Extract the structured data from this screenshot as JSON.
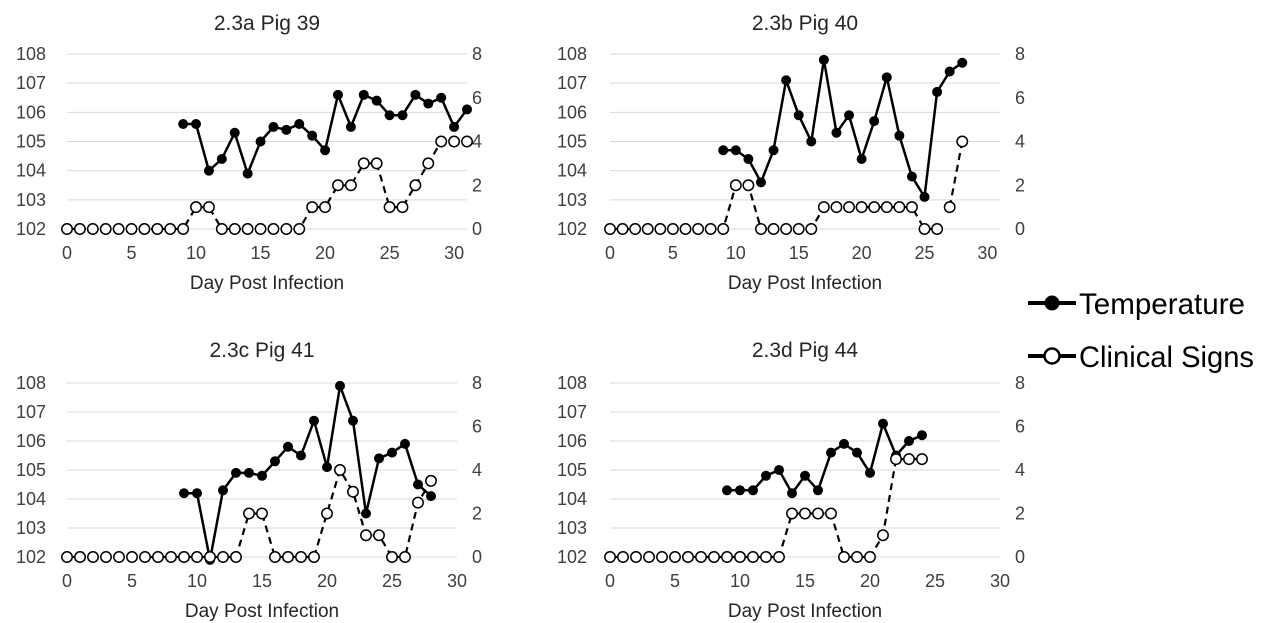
{
  "legend": [
    {
      "name": "Temperature",
      "marker": "filled",
      "line": "solid"
    },
    {
      "name": "Clinical Signs",
      "marker": "open",
      "line": "dashed"
    }
  ],
  "colors": {
    "series": "#000000",
    "grid": "#d9d9d9",
    "tick_text": "#404040"
  },
  "chart_data": [
    {
      "type": "line",
      "title": "2.3a Pig 39",
      "xlabel": "Day Post Infection",
      "x_ticks": [
        0,
        5,
        10,
        15,
        20,
        25,
        30
      ],
      "xlim": [
        0,
        31
      ],
      "ylim_left": [
        102,
        108
      ],
      "y_ticks_left": [
        102,
        103,
        104,
        105,
        106,
        107,
        108
      ],
      "ylim_right": [
        0,
        8
      ],
      "y_ticks_right": [
        0,
        2,
        4,
        6,
        8
      ],
      "grid": true,
      "series": [
        {
          "name": "Temperature",
          "axis": "left",
          "x": [
            9,
            10,
            11,
            12,
            13,
            14,
            15,
            16,
            17,
            18,
            19,
            20,
            21,
            22,
            23,
            24,
            25,
            26,
            27,
            28,
            29,
            30,
            31
          ],
          "y": [
            105.6,
            105.6,
            104.0,
            104.4,
            105.3,
            103.9,
            105.0,
            105.5,
            105.4,
            105.6,
            105.2,
            104.7,
            106.6,
            105.5,
            106.6,
            106.4,
            105.9,
            105.9,
            106.6,
            106.3,
            106.5,
            105.5,
            106.1
          ]
        },
        {
          "name": "Clinical Signs",
          "axis": "right",
          "x": [
            0,
            1,
            2,
            3,
            4,
            5,
            6,
            7,
            8,
            9,
            10,
            11,
            12,
            13,
            14,
            15,
            16,
            17,
            18,
            19,
            20,
            21,
            22,
            23,
            24,
            25,
            26,
            27,
            28,
            29,
            30,
            31
          ],
          "y": [
            0,
            0,
            0,
            0,
            0,
            0,
            0,
            0,
            0,
            0,
            1,
            1,
            0,
            0,
            0,
            0,
            0,
            0,
            0,
            1,
            1,
            2,
            2,
            3,
            3,
            1,
            1,
            2,
            3,
            4,
            4,
            4
          ]
        }
      ]
    },
    {
      "type": "line",
      "title": "2.3b Pig 40",
      "xlabel": "Day Post Infection",
      "x_ticks": [
        0,
        5,
        10,
        15,
        20,
        25,
        30
      ],
      "xlim": [
        0,
        31
      ],
      "ylim_left": [
        102,
        108
      ],
      "y_ticks_left": [
        102,
        103,
        104,
        105,
        106,
        107,
        108
      ],
      "ylim_right": [
        0,
        8
      ],
      "y_ticks_right": [
        0,
        2,
        4,
        6,
        8
      ],
      "grid": true,
      "series": [
        {
          "name": "Temperature",
          "axis": "left",
          "x": [
            9,
            10,
            11,
            12,
            13,
            14,
            15,
            16,
            17,
            18,
            19,
            20,
            21,
            22,
            23,
            24,
            25,
            26,
            27,
            28
          ],
          "y": [
            104.7,
            104.7,
            104.4,
            103.6,
            104.7,
            107.1,
            105.9,
            105.0,
            107.8,
            105.3,
            105.9,
            104.4,
            105.7,
            107.2,
            105.2,
            103.8,
            103.1,
            106.7,
            107.4,
            107.7
          ]
        },
        {
          "name": "Clinical Signs",
          "axis": "right",
          "segments": [
            {
              "x": [
                0,
                1,
                2,
                3,
                4,
                5,
                6,
                7,
                8,
                9,
                10,
                11,
                12,
                13,
                14,
                15,
                16,
                17,
                18,
                19,
                20,
                21,
                22,
                23,
                24,
                25,
                26
              ],
              "y": [
                0,
                0,
                0,
                0,
                0,
                0,
                0,
                0,
                0,
                0,
                2,
                2,
                0,
                0,
                0,
                0,
                0,
                1,
                1,
                1,
                1,
                1,
                1,
                1,
                1,
                0,
                0
              ]
            },
            {
              "x": [
                27,
                28
              ],
              "y": [
                1,
                4
              ]
            }
          ]
        }
      ]
    },
    {
      "type": "line",
      "title": "2.3c Pig 41",
      "xlabel": "Day Post Infection",
      "x_ticks": [
        0,
        5,
        10,
        15,
        20,
        25,
        30
      ],
      "xlim": [
        0,
        30
      ],
      "ylim_left": [
        102,
        108
      ],
      "y_ticks_left": [
        102,
        103,
        104,
        105,
        106,
        107,
        108
      ],
      "ylim_right": [
        0,
        8
      ],
      "y_ticks_right": [
        0,
        2,
        4,
        6,
        8
      ],
      "grid": true,
      "series": [
        {
          "name": "Temperature",
          "axis": "left",
          "x": [
            9,
            10,
            11,
            12,
            13,
            14,
            15,
            16,
            17,
            18,
            19,
            20,
            21,
            22,
            23,
            24,
            25,
            26,
            27,
            28
          ],
          "y": [
            104.2,
            104.2,
            101.9,
            104.3,
            104.9,
            104.9,
            104.8,
            105.3,
            105.8,
            105.5,
            106.7,
            105.1,
            107.9,
            106.7,
            103.5,
            105.4,
            105.6,
            105.9,
            104.5,
            104.1
          ]
        },
        {
          "name": "Clinical Signs",
          "axis": "right",
          "x": [
            0,
            1,
            2,
            3,
            4,
            5,
            6,
            7,
            8,
            9,
            10,
            11,
            12,
            13,
            14,
            15,
            16,
            17,
            18,
            19,
            20,
            21,
            22,
            23,
            24,
            25,
            26,
            27,
            28
          ],
          "y": [
            0,
            0,
            0,
            0,
            0,
            0,
            0,
            0,
            0,
            0,
            0,
            0,
            0,
            0,
            2,
            2,
            0,
            0,
            0,
            0,
            2,
            4,
            3,
            1,
            1,
            0,
            0,
            2.5,
            3.5
          ]
        }
      ]
    },
    {
      "type": "line",
      "title": "2.3d Pig 44",
      "xlabel": "Day Post Infection",
      "x_ticks": [
        0,
        5,
        10,
        15,
        20,
        25,
        30
      ],
      "xlim": [
        0,
        30
      ],
      "ylim_left": [
        102,
        108
      ],
      "y_ticks_left": [
        102,
        103,
        104,
        105,
        106,
        107,
        108
      ],
      "ylim_right": [
        0,
        8
      ],
      "y_ticks_right": [
        0,
        2,
        4,
        6,
        8
      ],
      "grid": true,
      "series": [
        {
          "name": "Temperature",
          "axis": "left",
          "x": [
            9,
            10,
            11,
            12,
            13,
            14,
            15,
            16,
            17,
            18,
            19,
            20,
            21,
            22,
            23,
            24
          ],
          "y": [
            104.3,
            104.3,
            104.3,
            104.8,
            105.0,
            104.2,
            104.8,
            104.3,
            105.6,
            105.9,
            105.6,
            104.9,
            106.6,
            105.5,
            106.0,
            106.2
          ]
        },
        {
          "name": "Clinical Signs",
          "axis": "right",
          "x": [
            0,
            1,
            2,
            3,
            4,
            5,
            6,
            7,
            8,
            9,
            10,
            11,
            12,
            13,
            14,
            15,
            16,
            17,
            18,
            19,
            20,
            21,
            22,
            23,
            24
          ],
          "y": [
            0,
            0,
            0,
            0,
            0,
            0,
            0,
            0,
            0,
            0,
            0,
            0,
            0,
            0,
            2,
            2,
            2,
            2,
            0,
            0,
            0,
            1,
            4.5,
            4.5,
            4.5
          ]
        }
      ]
    }
  ]
}
